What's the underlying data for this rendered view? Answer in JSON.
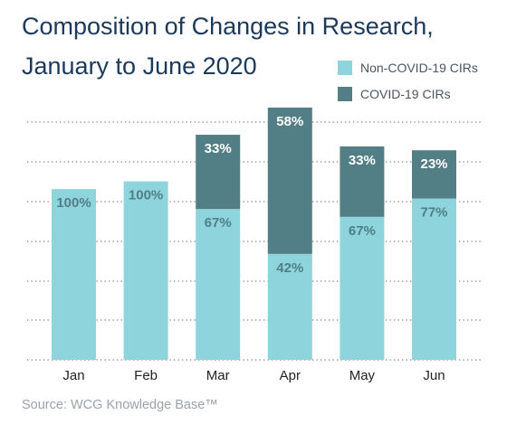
{
  "chart_data": {
    "type": "bar",
    "stacked": true,
    "title_lines": [
      "Composition of Changes in Research,",
      "January to June 2020"
    ],
    "categories": [
      "Jan",
      "Feb",
      "Mar",
      "Apr",
      "May",
      "Jun"
    ],
    "totals": [
      44,
      46,
      58,
      65,
      55,
      54
    ],
    "series": [
      {
        "name": "Non-COVID-19 CIRs",
        "color": "#8dd4dc",
        "share_labels": [
          "100%",
          "100%",
          "67%",
          "42%",
          "67%",
          "77%"
        ],
        "label_color": "#4f7f86"
      },
      {
        "name": "COVID-19 CIRs",
        "color": "#527e85",
        "share_labels": [
          "",
          "",
          "33%",
          "58%",
          "33%",
          "23%"
        ],
        "label_color": "#ffffff"
      }
    ],
    "xlabel": "",
    "ylabel": "",
    "ylim": [
      0,
      65
    ],
    "y_ticks_shown": false,
    "grid": "horizontal-dotted",
    "legend_position": "top-right"
  },
  "source": "Source: WCG Knowledge Base™"
}
